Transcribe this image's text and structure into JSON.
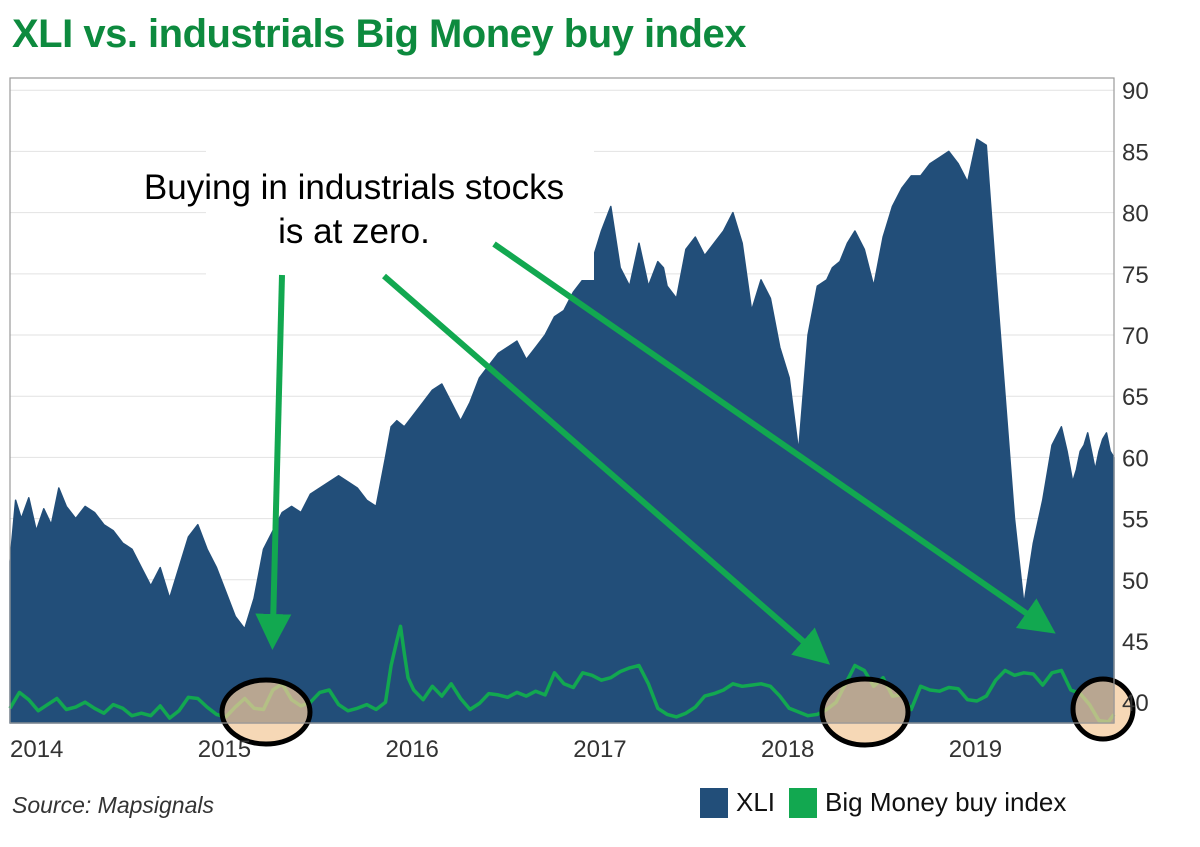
{
  "title": "XLI vs. industrials Big Money buy index",
  "source": "Source: Mapsignals",
  "annotation": [
    "Buying in industrials stocks",
    "is at zero."
  ],
  "legend": [
    {
      "label": "XLI",
      "color": "#224e79"
    },
    {
      "label": "Big Money buy index",
      "color": "#12a850"
    }
  ],
  "colors": {
    "title": "#0d8a3e",
    "area": "#224e79",
    "line": "#12a850",
    "arrow": "#12a850",
    "highlight": "#f3c99a",
    "circle": "#000000"
  },
  "chart_data": {
    "type": "area",
    "title": "XLI vs. industrials Big Money buy index",
    "xlabel": "",
    "ylabel": "",
    "x_ticks": [
      "2014",
      "2015",
      "2016",
      "2017",
      "2018",
      "2019"
    ],
    "y_ticks": [
      40,
      45,
      50,
      55,
      60,
      65,
      70,
      75,
      80,
      85,
      90
    ],
    "xlim": [
      2014.0,
      2019.88
    ],
    "ylim": [
      38.3,
      91
    ],
    "y_axis_side": "right",
    "grid": true,
    "legend_position": "bottom-right",
    "series": [
      {
        "name": "XLI",
        "type": "area",
        "x": [
          2014.0,
          2014.03,
          2014.06,
          2014.1,
          2014.14,
          2014.18,
          2014.22,
          2014.26,
          2014.3,
          2014.35,
          2014.4,
          2014.45,
          2014.5,
          2014.55,
          2014.6,
          2014.65,
          2014.7,
          2014.75,
          2014.8,
          2014.85,
          2014.9,
          2014.95,
          2015.0,
          2015.05,
          2015.1,
          2015.15,
          2015.2,
          2015.25,
          2015.3,
          2015.35,
          2015.4,
          2015.45,
          2015.5,
          2015.55,
          2015.6,
          2015.65,
          2015.7,
          2015.75,
          2015.8,
          2015.85,
          2015.9,
          2015.95,
          2016.0,
          2016.03,
          2016.06,
          2016.1,
          2016.15,
          2016.2,
          2016.25,
          2016.3,
          2016.35,
          2016.4,
          2016.45,
          2016.5,
          2016.55,
          2016.6,
          2016.65,
          2016.7,
          2016.75,
          2016.8,
          2016.85,
          2016.9,
          2016.95,
          2017.0,
          2017.05,
          2017.1,
          2017.15,
          2017.2,
          2017.25,
          2017.3,
          2017.35,
          2017.4,
          2017.45,
          2017.48,
          2017.5,
          2017.55,
          2017.6,
          2017.65,
          2017.7,
          2017.75,
          2017.8,
          2017.85,
          2017.9,
          2017.95,
          2018.0,
          2018.05,
          2018.1,
          2018.15,
          2018.2,
          2018.25,
          2018.3,
          2018.35,
          2018.38,
          2018.42,
          2018.46,
          2018.5,
          2018.55,
          2018.6,
          2018.65,
          2018.7,
          2018.75,
          2018.8,
          2018.85,
          2018.9,
          2018.95,
          2019.0,
          2019.05,
          2019.1,
          2019.15,
          2019.2,
          2019.25,
          2019.3,
          2019.35,
          2019.4,
          2019.45,
          2019.5,
          2019.55,
          2019.6,
          2019.63,
          2019.66,
          2019.68,
          2019.7,
          2019.72,
          2019.74,
          2019.76,
          2019.78,
          2019.8,
          2019.82,
          2019.84,
          2019.86,
          2019.88
        ],
        "values": [
          51.5,
          56.5,
          55.0,
          56.7,
          54.0,
          55.8,
          54.5,
          57.5,
          56.0,
          55.0,
          56.0,
          55.5,
          54.5,
          54.0,
          53.0,
          52.5,
          51.0,
          49.5,
          51.0,
          48.5,
          51.0,
          53.5,
          54.5,
          52.5,
          51.0,
          49.0,
          47.0,
          46.0,
          48.5,
          52.5,
          54.0,
          55.5,
          56.0,
          55.5,
          57.0,
          57.5,
          58.0,
          58.5,
          58.0,
          57.5,
          56.5,
          56.0,
          60.0,
          62.5,
          63.0,
          62.5,
          63.5,
          64.5,
          65.5,
          66.0,
          64.5,
          63.0,
          64.5,
          66.5,
          67.5,
          68.5,
          69.0,
          69.5,
          68.0,
          69.0,
          70.0,
          71.5,
          72.0,
          73.5,
          74.5,
          76.0,
          78.5,
          80.5,
          75.5,
          74.0,
          77.5,
          74.0,
          76.0,
          75.5,
          74.0,
          73.0,
          77.0,
          78.0,
          76.5,
          77.5,
          78.5,
          80.0,
          77.5,
          72.0,
          74.5,
          73.0,
          69.0,
          66.5,
          60.5,
          70.0,
          74.0,
          74.5,
          75.5,
          76.0,
          77.5,
          78.5,
          77.0,
          74.0,
          78.0,
          80.5,
          82.0,
          83.0,
          83.0,
          84.0,
          84.5,
          85.0,
          84.0,
          82.5,
          86.0,
          85.5,
          75.0,
          65.0,
          55.0,
          48.0,
          53.0,
          56.5,
          61.0,
          62.5,
          60.5,
          58.0,
          59.0,
          60.5,
          61.0,
          62.0,
          60.5,
          59.0,
          60.5,
          61.5,
          62.0,
          60.5,
          60.0
        ]
      },
      {
        "name": "Big Money buy index",
        "type": "line",
        "x": [
          2014.0,
          2014.05,
          2014.1,
          2014.15,
          2014.2,
          2014.25,
          2014.3,
          2014.35,
          2014.4,
          2014.45,
          2014.5,
          2014.55,
          2014.6,
          2014.65,
          2014.7,
          2014.75,
          2014.8,
          2014.85,
          2014.9,
          2014.95,
          2015.0,
          2015.05,
          2015.1,
          2015.15,
          2015.2,
          2015.25,
          2015.3,
          2015.35,
          2015.4,
          2015.45,
          2015.5,
          2015.55,
          2015.6,
          2015.65,
          2015.7,
          2015.75,
          2015.8,
          2015.85,
          2015.9,
          2015.95,
          2016.0,
          2016.03,
          2016.06,
          2016.08,
          2016.1,
          2016.12,
          2016.15,
          2016.2,
          2016.25,
          2016.3,
          2016.35,
          2016.4,
          2016.45,
          2016.5,
          2016.55,
          2016.6,
          2016.65,
          2016.7,
          2016.75,
          2016.8,
          2016.85,
          2016.9,
          2016.95,
          2017.0,
          2017.05,
          2017.1,
          2017.15,
          2017.2,
          2017.25,
          2017.3,
          2017.35,
          2017.4,
          2017.45,
          2017.5,
          2017.55,
          2017.6,
          2017.65,
          2017.7,
          2017.75,
          2017.8,
          2017.85,
          2017.9,
          2017.95,
          2018.0,
          2018.05,
          2018.1,
          2018.15,
          2018.2,
          2018.25,
          2018.3,
          2018.35,
          2018.4,
          2018.45,
          2018.5,
          2018.55,
          2018.6,
          2018.65,
          2018.7,
          2018.75,
          2018.8,
          2018.85,
          2018.9,
          2018.95,
          2019.0,
          2019.05,
          2019.1,
          2019.15,
          2019.2,
          2019.25,
          2019.3,
          2019.35,
          2019.4,
          2019.45,
          2019.5,
          2019.55,
          2019.6,
          2019.65,
          2019.7,
          2019.75,
          2019.8,
          2019.85,
          2019.88
        ],
        "values": [
          39.5,
          40.8,
          40.2,
          39.3,
          39.8,
          40.3,
          39.4,
          39.6,
          40.0,
          39.5,
          39.1,
          39.8,
          39.5,
          38.9,
          39.1,
          38.9,
          39.7,
          38.7,
          39.3,
          40.4,
          40.3,
          39.6,
          39.0,
          38.8,
          39.6,
          40.3,
          39.5,
          39.4,
          41.0,
          41.5,
          40.2,
          39.7,
          40.0,
          40.8,
          41.0,
          39.8,
          39.3,
          39.5,
          39.8,
          39.4,
          40.0,
          43.0,
          45.0,
          46.2,
          44.0,
          42.0,
          41.0,
          40.2,
          41.3,
          40.5,
          41.5,
          40.3,
          39.4,
          39.9,
          40.7,
          40.6,
          40.4,
          40.8,
          40.5,
          40.9,
          40.6,
          42.4,
          41.5,
          41.2,
          42.4,
          42.2,
          41.8,
          42.0,
          42.5,
          42.8,
          43.0,
          41.5,
          39.5,
          39.0,
          38.8,
          39.1,
          39.6,
          40.5,
          40.7,
          41.0,
          41.5,
          41.3,
          41.4,
          41.5,
          41.3,
          40.5,
          39.5,
          39.2,
          38.9,
          39.0,
          39.4,
          40.0,
          41.5,
          43.0,
          42.6,
          41.3,
          42.0,
          40.5,
          40.6,
          39.4,
          41.3,
          41.0,
          40.9,
          41.2,
          41.1,
          40.2,
          40.1,
          40.5,
          41.8,
          42.6,
          42.2,
          42.4,
          42.3,
          41.4,
          42.4,
          42.6,
          41.0,
          40.7,
          39.8,
          38.5,
          38.4,
          39.0
        ]
      }
    ],
    "annotations": [
      "Buying in industrials stocks",
      "is at zero."
    ]
  }
}
